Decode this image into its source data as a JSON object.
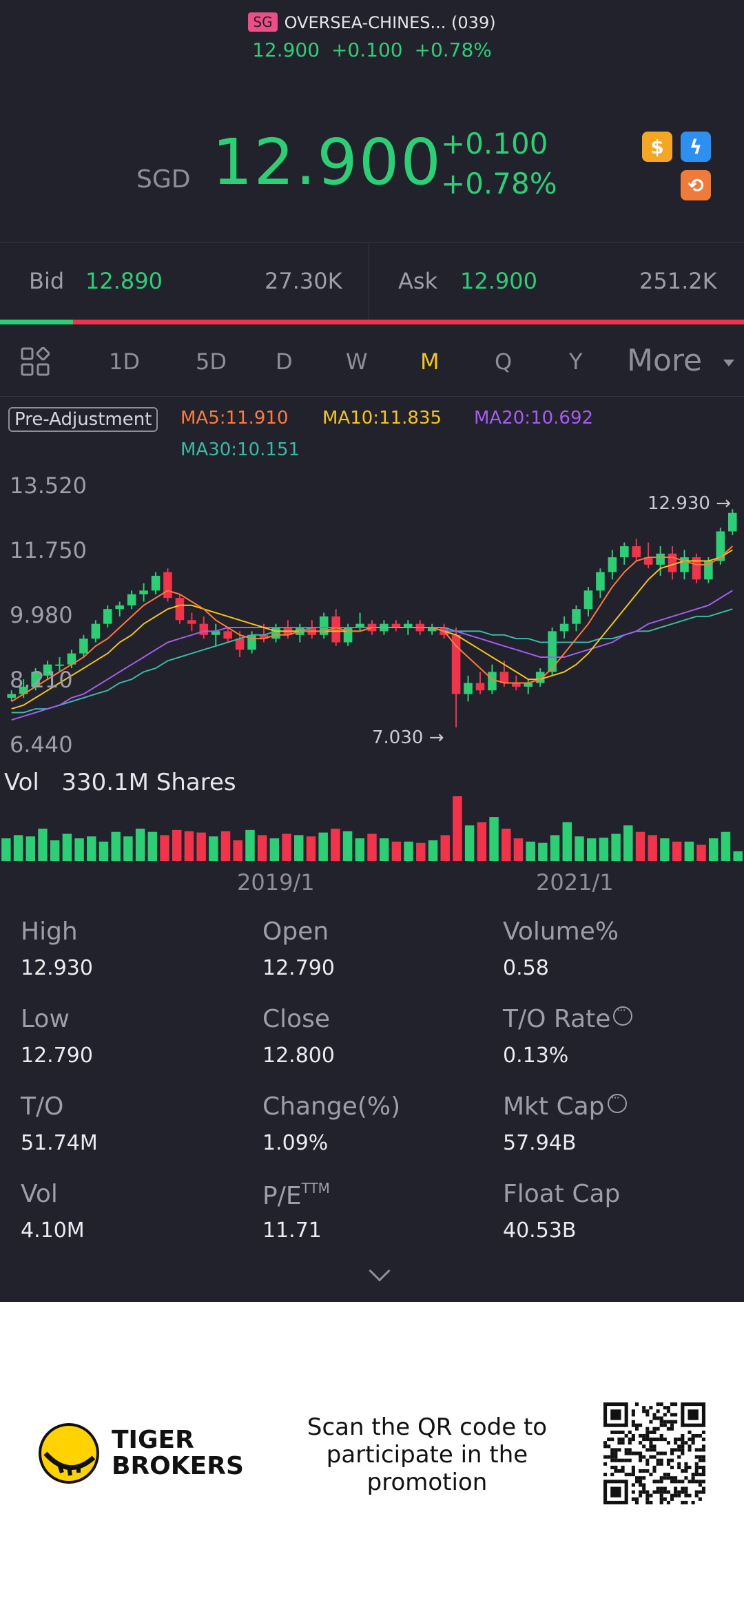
{
  "header": {
    "market_tag": "SG",
    "stock_name": "OVERSEA-CHINES... (039)",
    "sub_price": "12.900",
    "sub_change": "+0.100",
    "sub_pct": "+0.78%"
  },
  "quote": {
    "currency": "SGD",
    "price": "12.900",
    "change": "+0.100",
    "change_pct": "+0.78%",
    "badges": [
      "dollar-icon",
      "lightning-icon",
      "exchange-icon"
    ]
  },
  "bid_ask": {
    "bid_label": "Bid",
    "bid_price": "12.890",
    "bid_size": "27.30K",
    "ask_label": "Ask",
    "ask_price": "12.900",
    "ask_size": "251.2K",
    "bid_ratio": 0.098
  },
  "tabs": {
    "items": [
      "1D",
      "5D",
      "D",
      "W",
      "M",
      "Q",
      "Y"
    ],
    "active": "M",
    "more": "More"
  },
  "legend": {
    "adjust": "Pre-Adjustment",
    "ma5": "MA5:11.910",
    "ma10": "MA10:11.835",
    "ma20": "MA20:10.692",
    "ma30": "MA30:10.151"
  },
  "chart_data": {
    "type": "candlestick",
    "y_ticks": [
      "13.520",
      "11.750",
      "9.980",
      "8.210",
      "6.440"
    ],
    "ylim": [
      6.44,
      13.52
    ],
    "x_ticks": [
      "2019/1",
      "2021/1"
    ],
    "high_marker": "12.930",
    "low_marker": "7.030",
    "candles": [
      [
        7.8,
        8.0,
        7.7,
        7.9
      ],
      [
        7.9,
        8.3,
        7.8,
        8.1
      ],
      [
        8.1,
        8.6,
        8.0,
        8.5
      ],
      [
        8.4,
        8.8,
        8.3,
        8.7
      ],
      [
        8.7,
        8.9,
        8.5,
        8.7
      ],
      [
        8.7,
        9.1,
        8.6,
        9.0
      ],
      [
        9.0,
        9.5,
        8.9,
        9.4
      ],
      [
        9.4,
        9.9,
        9.3,
        9.8
      ],
      [
        9.8,
        10.3,
        9.7,
        10.2
      ],
      [
        10.2,
        10.4,
        10.0,
        10.3
      ],
      [
        10.3,
        10.7,
        10.2,
        10.6
      ],
      [
        10.6,
        10.9,
        10.4,
        10.7
      ],
      [
        10.7,
        11.2,
        10.6,
        11.1
      ],
      [
        11.2,
        11.3,
        10.4,
        10.5
      ],
      [
        10.5,
        10.6,
        9.8,
        9.9
      ],
      [
        9.9,
        10.1,
        9.6,
        9.8
      ],
      [
        9.8,
        10.0,
        9.4,
        9.5
      ],
      [
        9.5,
        9.8,
        9.2,
        9.6
      ],
      [
        9.6,
        9.7,
        9.3,
        9.4
      ],
      [
        9.4,
        9.6,
        8.9,
        9.1
      ],
      [
        9.1,
        9.6,
        9.0,
        9.5
      ],
      [
        9.5,
        9.8,
        9.3,
        9.4
      ],
      [
        9.4,
        9.8,
        9.3,
        9.7
      ],
      [
        9.7,
        9.9,
        9.4,
        9.5
      ],
      [
        9.5,
        9.8,
        9.3,
        9.7
      ],
      [
        9.7,
        9.9,
        9.4,
        9.5
      ],
      [
        9.5,
        10.1,
        9.4,
        10.0
      ],
      [
        10.0,
        10.2,
        9.2,
        9.3
      ],
      [
        9.3,
        9.8,
        9.2,
        9.7
      ],
      [
        9.7,
        10.1,
        9.6,
        9.8
      ],
      [
        9.8,
        9.9,
        9.5,
        9.6
      ],
      [
        9.6,
        9.9,
        9.5,
        9.8
      ],
      [
        9.8,
        9.9,
        9.6,
        9.7
      ],
      [
        9.7,
        9.9,
        9.5,
        9.8
      ],
      [
        9.8,
        9.9,
        9.5,
        9.6
      ],
      [
        9.6,
        9.8,
        9.5,
        9.7
      ],
      [
        9.7,
        9.8,
        9.4,
        9.5
      ],
      [
        9.5,
        9.7,
        7.0,
        7.9
      ],
      [
        7.9,
        8.4,
        7.7,
        8.2
      ],
      [
        8.2,
        8.5,
        7.9,
        8.0
      ],
      [
        8.0,
        8.7,
        7.9,
        8.5
      ],
      [
        8.5,
        8.8,
        8.1,
        8.2
      ],
      [
        8.2,
        8.4,
        8.0,
        8.1
      ],
      [
        8.1,
        8.3,
        7.9,
        8.2
      ],
      [
        8.2,
        8.6,
        8.1,
        8.5
      ],
      [
        8.5,
        9.7,
        8.4,
        9.6
      ],
      [
        9.6,
        10.0,
        9.4,
        9.8
      ],
      [
        9.8,
        10.3,
        9.6,
        10.2
      ],
      [
        10.2,
        10.8,
        10.0,
        10.7
      ],
      [
        10.7,
        11.3,
        10.5,
        11.2
      ],
      [
        11.2,
        11.8,
        11.0,
        11.6
      ],
      [
        11.6,
        12.0,
        11.4,
        11.9
      ],
      [
        11.9,
        12.1,
        11.5,
        11.6
      ],
      [
        11.6,
        12.0,
        11.3,
        11.4
      ],
      [
        11.4,
        11.9,
        11.1,
        11.7
      ],
      [
        11.7,
        11.9,
        11.0,
        11.2
      ],
      [
        11.2,
        11.8,
        11.0,
        11.6
      ],
      [
        11.6,
        11.7,
        10.9,
        11.0
      ],
      [
        11.0,
        11.6,
        10.9,
        11.5
      ],
      [
        11.5,
        12.4,
        11.4,
        12.3
      ],
      [
        12.3,
        12.9,
        12.2,
        12.8
      ]
    ],
    "ma5": [
      7.7,
      7.9,
      8.1,
      8.3,
      8.5,
      8.7,
      8.9,
      9.2,
      9.4,
      9.7,
      10.0,
      10.3,
      10.5,
      10.7,
      10.6,
      10.4,
      10.2,
      9.9,
      9.7,
      9.5,
      9.4,
      9.4,
      9.5,
      9.5,
      9.6,
      9.6,
      9.6,
      9.7,
      9.6,
      9.6,
      9.7,
      9.7,
      9.7,
      9.7,
      9.7,
      9.7,
      9.6,
      9.2,
      8.9,
      8.6,
      8.3,
      8.2,
      8.2,
      8.2,
      8.3,
      8.6,
      9.0,
      9.4,
      9.8,
      10.3,
      10.8,
      11.2,
      11.5,
      11.6,
      11.6,
      11.6,
      11.5,
      11.4,
      11.4,
      11.6,
      11.9
    ],
    "ma10": [
      7.5,
      7.6,
      7.8,
      8.0,
      8.2,
      8.4,
      8.6,
      8.8,
      9.0,
      9.3,
      9.5,
      9.8,
      10.0,
      10.2,
      10.3,
      10.3,
      10.2,
      10.1,
      10.0,
      9.9,
      9.8,
      9.7,
      9.6,
      9.6,
      9.6,
      9.6,
      9.6,
      9.6,
      9.6,
      9.6,
      9.7,
      9.7,
      9.7,
      9.7,
      9.7,
      9.7,
      9.6,
      9.5,
      9.3,
      9.1,
      8.9,
      8.7,
      8.5,
      8.3,
      8.3,
      8.4,
      8.5,
      8.7,
      9.0,
      9.4,
      9.8,
      10.2,
      10.6,
      11.0,
      11.3,
      11.4,
      11.5,
      11.5,
      11.5,
      11.6,
      11.8
    ],
    "ma20": [
      7.2,
      7.3,
      7.4,
      7.5,
      7.6,
      7.8,
      7.9,
      8.1,
      8.3,
      8.5,
      8.7,
      8.9,
      9.1,
      9.3,
      9.4,
      9.5,
      9.6,
      9.6,
      9.7,
      9.7,
      9.7,
      9.7,
      9.7,
      9.7,
      9.7,
      9.7,
      9.7,
      9.7,
      9.7,
      9.7,
      9.7,
      9.7,
      9.7,
      9.7,
      9.7,
      9.7,
      9.6,
      9.6,
      9.5,
      9.4,
      9.3,
      9.2,
      9.1,
      9.0,
      8.9,
      8.9,
      8.9,
      9.0,
      9.1,
      9.2,
      9.3,
      9.5,
      9.6,
      9.8,
      9.9,
      10.0,
      10.1,
      10.2,
      10.3,
      10.5,
      10.7
    ],
    "ma30": [
      7.4,
      7.4,
      7.5,
      7.5,
      7.6,
      7.7,
      7.8,
      7.9,
      8.0,
      8.2,
      8.3,
      8.5,
      8.6,
      8.8,
      8.9,
      9.0,
      9.1,
      9.2,
      9.3,
      9.4,
      9.5,
      9.5,
      9.6,
      9.6,
      9.6,
      9.7,
      9.7,
      9.7,
      9.7,
      9.7,
      9.7,
      9.7,
      9.7,
      9.7,
      9.7,
      9.7,
      9.7,
      9.6,
      9.6,
      9.6,
      9.5,
      9.5,
      9.4,
      9.4,
      9.3,
      9.3,
      9.3,
      9.3,
      9.3,
      9.4,
      9.4,
      9.5,
      9.6,
      9.6,
      9.7,
      9.8,
      9.9,
      10.0,
      10.0,
      10.1,
      10.2
    ],
    "volume_label": "Vol",
    "volume_value": "330.1M Shares",
    "volumes": [
      0.35,
      0.4,
      0.38,
      0.5,
      0.32,
      0.42,
      0.35,
      0.38,
      0.3,
      0.45,
      0.38,
      0.5,
      0.45,
      0.4,
      0.48,
      0.46,
      0.44,
      0.38,
      0.46,
      0.32,
      0.48,
      0.4,
      0.35,
      0.42,
      0.4,
      0.38,
      0.44,
      0.5,
      0.46,
      0.35,
      0.42,
      0.35,
      0.3,
      0.3,
      0.28,
      0.32,
      0.4,
      1.0,
      0.55,
      0.6,
      0.68,
      0.5,
      0.35,
      0.3,
      0.28,
      0.4,
      0.6,
      0.38,
      0.35,
      0.36,
      0.42,
      0.55,
      0.45,
      0.4,
      0.35,
      0.3,
      0.3,
      0.25,
      0.35,
      0.45,
      0.15
    ],
    "colors": {
      "up": "#2dcf74",
      "down": "#f2344b",
      "ma5": "#ff7a3d",
      "ma10": "#f5c518",
      "ma20": "#a55cf0",
      "ma30": "#3bb8a8"
    }
  },
  "stats": [
    {
      "label": "High",
      "value": "12.930"
    },
    {
      "label": "Open",
      "value": "12.790"
    },
    {
      "label": "Volume%",
      "value": "0.58"
    },
    {
      "label": "Low",
      "value": "12.790"
    },
    {
      "label": "Close",
      "value": "12.800"
    },
    {
      "label": "T/O Rate",
      "value": "0.13%"
    },
    {
      "label": "T/O",
      "value": "51.74M"
    },
    {
      "label": "Change(%)",
      "value": "1.09%"
    },
    {
      "label": "Mkt Cap",
      "value": "57.94B"
    },
    {
      "label": "Vol",
      "value": "4.10M"
    },
    {
      "label": "P/E",
      "sup": "TTM",
      "value": "11.71"
    },
    {
      "label": "Float Cap",
      "value": "40.53B"
    }
  ],
  "footer": {
    "brand_line1": "TIGER",
    "brand_line2": "BROKERS",
    "promo_line1": "Scan the QR code to",
    "promo_line2": "participate in the",
    "promo_line3": "promotion"
  }
}
